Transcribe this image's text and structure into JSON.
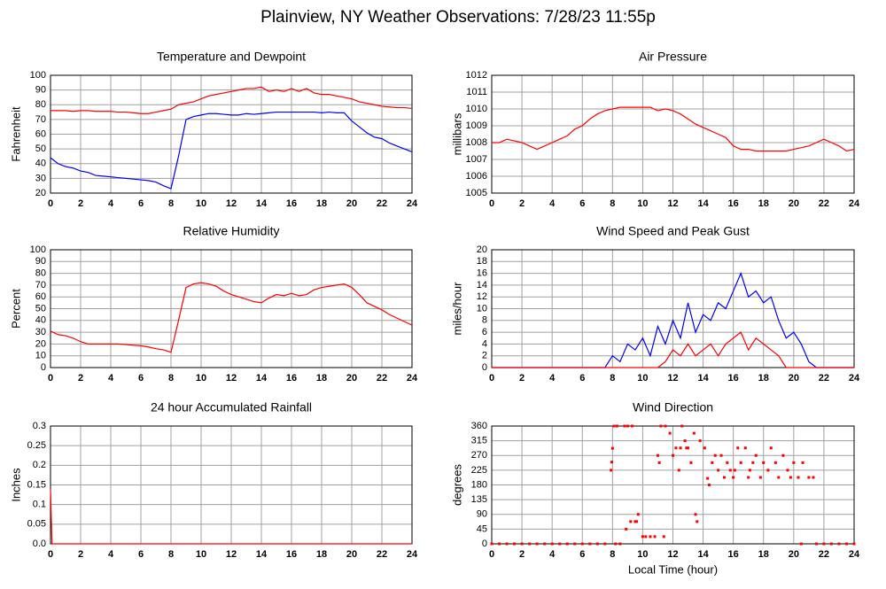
{
  "title": "Plainview, NY Weather Observations: 7/28/23 11:55p",
  "chart_data": [
    {
      "type": "line",
      "title": "Temperature and Dewpoint",
      "ylabel": "Fahrenheit",
      "grid": true,
      "xlim": [
        0,
        24
      ],
      "xticks": [
        0,
        2,
        4,
        6,
        8,
        10,
        12,
        14,
        16,
        18,
        20,
        22,
        24
      ],
      "ylim": [
        20,
        100
      ],
      "yticks": [
        20,
        30,
        40,
        50,
        60,
        70,
        80,
        90,
        100
      ],
      "x": [
        0,
        0.5,
        1,
        1.5,
        2,
        2.5,
        3,
        3.5,
        4,
        4.5,
        5,
        5.5,
        6,
        6.5,
        7,
        7.5,
        8,
        8.5,
        9,
        9.5,
        10,
        10.5,
        11,
        11.5,
        12,
        12.5,
        13,
        13.5,
        14,
        14.5,
        15,
        15.5,
        16,
        16.5,
        17,
        17.5,
        18,
        18.5,
        19,
        19.5,
        20,
        20.5,
        21,
        21.5,
        22,
        22.5,
        23,
        23.5,
        24
      ],
      "series": [
        {
          "color": "#ff0000",
          "values": [
            76,
            76,
            76,
            75.5,
            76,
            76,
            75.5,
            75.5,
            75.5,
            75,
            75,
            74.5,
            74,
            74,
            75,
            76,
            77,
            80,
            81,
            82,
            84,
            86,
            87,
            88,
            89,
            90,
            91,
            91,
            92,
            89,
            90,
            89,
            91,
            89,
            91,
            88,
            87,
            87,
            86,
            85,
            84,
            82,
            81,
            80,
            79,
            78.5,
            78,
            78,
            77.5
          ]
        },
        {
          "color": "#0000ff",
          "values": [
            44,
            40,
            38,
            37,
            35,
            34,
            32,
            31.5,
            31,
            30.5,
            30,
            29.5,
            29,
            28.5,
            27.5,
            25,
            23,
            45,
            70,
            72,
            73,
            74,
            74,
            73.5,
            73,
            73,
            74,
            73.5,
            74,
            74.5,
            75,
            75,
            75,
            75,
            75,
            75,
            74.5,
            75,
            74.5,
            74.5,
            69,
            65,
            61,
            58,
            57,
            54,
            52,
            50,
            48
          ]
        }
      ]
    },
    {
      "type": "line",
      "title": "Air Pressure",
      "ylabel": "millibars",
      "grid": true,
      "xlim": [
        0,
        24
      ],
      "xticks": [
        0,
        2,
        4,
        6,
        8,
        10,
        12,
        14,
        16,
        18,
        20,
        22,
        24
      ],
      "ylim": [
        1005,
        1012
      ],
      "yticks": [
        1005,
        1006,
        1007,
        1008,
        1009,
        1010,
        1011,
        1012
      ],
      "x": [
        0,
        0.5,
        1,
        1.5,
        2,
        2.5,
        3,
        3.5,
        4,
        4.5,
        5,
        5.5,
        6,
        6.5,
        7,
        7.5,
        8,
        8.5,
        9,
        9.5,
        10,
        10.5,
        11,
        11.5,
        12,
        12.5,
        13,
        13.5,
        14,
        14.5,
        15,
        15.5,
        16,
        16.5,
        17,
        17.5,
        18,
        18.5,
        19,
        19.5,
        20,
        20.5,
        21,
        21.5,
        22,
        22.5,
        23,
        23.5,
        24
      ],
      "series": [
        {
          "color": "#ff0000",
          "values": [
            1008,
            1008,
            1008.2,
            1008.1,
            1008,
            1007.8,
            1007.6,
            1007.8,
            1008,
            1008.2,
            1008.4,
            1008.8,
            1009,
            1009.4,
            1009.7,
            1009.9,
            1010,
            1010.1,
            1010.1,
            1010.1,
            1010.1,
            1010.1,
            1009.9,
            1010,
            1009.9,
            1009.7,
            1009.4,
            1009.1,
            1008.9,
            1008.7,
            1008.5,
            1008.3,
            1007.8,
            1007.6,
            1007.6,
            1007.5,
            1007.5,
            1007.5,
            1007.5,
            1007.5,
            1007.6,
            1007.7,
            1007.8,
            1008,
            1008.2,
            1008,
            1007.8,
            1007.5,
            1007.6
          ]
        }
      ]
    },
    {
      "type": "line",
      "title": "Relative Humidity",
      "ylabel": "Percent",
      "grid": true,
      "xlim": [
        0,
        24
      ],
      "xticks": [
        0,
        2,
        4,
        6,
        8,
        10,
        12,
        14,
        16,
        18,
        20,
        22,
        24
      ],
      "ylim": [
        0,
        100
      ],
      "yticks": [
        0,
        10,
        20,
        30,
        40,
        50,
        60,
        70,
        80,
        90,
        100
      ],
      "x": [
        0,
        0.5,
        1,
        1.5,
        2,
        2.5,
        3,
        3.5,
        4,
        4.5,
        5,
        5.5,
        6,
        6.5,
        7,
        7.5,
        8,
        8.5,
        9,
        9.5,
        10,
        10.5,
        11,
        11.5,
        12,
        12.5,
        13,
        13.5,
        14,
        14.5,
        15,
        15.5,
        16,
        16.5,
        17,
        17.5,
        18,
        18.5,
        19,
        19.5,
        20,
        20.5,
        21,
        21.5,
        22,
        22.5,
        23,
        23.5,
        24
      ],
      "series": [
        {
          "color": "#ff0000",
          "values": [
            31,
            28,
            27,
            25,
            22,
            20,
            20,
            20,
            20,
            20,
            19.5,
            19,
            18.5,
            17.5,
            16,
            15,
            13,
            40,
            68,
            71,
            72,
            71,
            69,
            65,
            62,
            60,
            58,
            56,
            55,
            59,
            62,
            61,
            63,
            61,
            62,
            66,
            68,
            69,
            70,
            71,
            68,
            62,
            55,
            52,
            49,
            45,
            42,
            39,
            36
          ]
        }
      ]
    },
    {
      "type": "line",
      "title": "Wind Speed and Peak Gust",
      "ylabel": "miles/hour",
      "grid": true,
      "xlim": [
        0,
        24
      ],
      "xticks": [
        0,
        2,
        4,
        6,
        8,
        10,
        12,
        14,
        16,
        18,
        20,
        22,
        24
      ],
      "ylim": [
        0,
        20
      ],
      "yticks": [
        0,
        2,
        4,
        6,
        8,
        10,
        12,
        14,
        16,
        18,
        20
      ],
      "x": [
        0,
        0.5,
        1,
        1.5,
        2,
        2.5,
        3,
        3.5,
        4,
        4.5,
        5,
        5.5,
        6,
        6.5,
        7,
        7.5,
        8,
        8.5,
        9,
        9.5,
        10,
        10.5,
        11,
        11.5,
        12,
        12.5,
        13,
        13.5,
        14,
        14.5,
        15,
        15.5,
        16,
        16.5,
        17,
        17.5,
        18,
        18.5,
        19,
        19.5,
        20,
        20.5,
        21,
        21.5,
        22,
        22.5,
        23,
        23.5,
        24
      ],
      "series": [
        {
          "color": "#0000ff",
          "values": [
            0,
            0,
            0,
            0,
            0,
            0,
            0,
            0,
            0,
            0,
            0,
            0,
            0,
            0,
            0,
            0,
            2,
            1,
            4,
            3,
            5,
            2,
            7,
            4,
            8,
            5,
            11,
            6,
            9,
            8,
            11,
            10,
            13,
            16,
            12,
            13,
            11,
            12,
            8,
            5,
            6,
            4,
            1,
            0,
            0,
            0,
            0,
            0,
            0
          ]
        },
        {
          "color": "#ff0000",
          "values": [
            0,
            0,
            0,
            0,
            0,
            0,
            0,
            0,
            0,
            0,
            0,
            0,
            0,
            0,
            0,
            0,
            0,
            0,
            0,
            0,
            0,
            0,
            0,
            1,
            3,
            2,
            4,
            2,
            3,
            4,
            2,
            4,
            5,
            6,
            3,
            5,
            4,
            3,
            2,
            0,
            0,
            0,
            0,
            0,
            0,
            0,
            0,
            0,
            0
          ]
        }
      ]
    },
    {
      "type": "line",
      "title": "24 hour Accumulated Rainfall",
      "ylabel": "Inches",
      "grid": true,
      "xlim": [
        0,
        24
      ],
      "xticks": [
        0,
        2,
        4,
        6,
        8,
        10,
        12,
        14,
        16,
        18,
        20,
        22,
        24
      ],
      "ylim": [
        0,
        0.3
      ],
      "yticks": [
        {
          "value": 0,
          "label": "0.0"
        },
        0.05,
        0.1,
        0.15,
        0.2,
        0.25,
        0.3
      ],
      "x": [
        0,
        0.1,
        24
      ],
      "series": [
        {
          "color": "#ff0000",
          "values": [
            0.14,
            0,
            0
          ]
        }
      ]
    },
    {
      "type": "scatter",
      "title": "Wind Direction",
      "ylabel": "degrees",
      "xlabel": "Local Time (hour)",
      "grid": true,
      "xlim": [
        0,
        24
      ],
      "xticks": [
        0,
        2,
        4,
        6,
        8,
        10,
        12,
        14,
        16,
        18,
        20,
        22,
        24
      ],
      "ylim": [
        0,
        360
      ],
      "yticks": [
        0,
        45,
        90,
        135,
        180,
        225,
        270,
        315,
        360
      ],
      "x": [
        0,
        0.5,
        1,
        1.5,
        2,
        2.5,
        3,
        3.5,
        4,
        4.5,
        5,
        5.5,
        6,
        6.5,
        7,
        7.5,
        7.9,
        7.95,
        8,
        8.1,
        8.2,
        8.3,
        8.5,
        8.8,
        8.9,
        9,
        9.2,
        9.3,
        9.5,
        9.6,
        9.7,
        10,
        10.2,
        10.5,
        10.8,
        11,
        11.1,
        11.2,
        11.4,
        11.5,
        11.8,
        12,
        12.2,
        12.4,
        12.5,
        12.6,
        12.8,
        12.9,
        13,
        13.2,
        13.4,
        13.5,
        13.6,
        13.8,
        14.1,
        14.3,
        14.4,
        14.6,
        14.8,
        15,
        15.2,
        15.4,
        15.6,
        15.8,
        16,
        16.1,
        16.3,
        16.5,
        16.8,
        17,
        17.1,
        17.3,
        17.5,
        17.8,
        18,
        18.3,
        18.5,
        18.8,
        19,
        19.3,
        19.6,
        19.8,
        20,
        20.3,
        20.5,
        20.6,
        21,
        21.3,
        21.5,
        22,
        22.5,
        23,
        23.5,
        24
      ],
      "series": [
        {
          "color": "#ff0000",
          "values": [
            0,
            0,
            0,
            0,
            0,
            0,
            0,
            0,
            0,
            0,
            0,
            0,
            0,
            0,
            0,
            0,
            225,
            250,
            292,
            360,
            0,
            360,
            0,
            360,
            45,
            360,
            68,
            360,
            68,
            68,
            90,
            22,
            22,
            22,
            22,
            270,
            248,
            360,
            22,
            360,
            338,
            270,
            293,
            225,
            293,
            360,
            315,
            293,
            293,
            248,
            338,
            90,
            68,
            315,
            293,
            200,
            180,
            248,
            270,
            225,
            270,
            203,
            248,
            225,
            203,
            225,
            293,
            248,
            293,
            203,
            225,
            248,
            270,
            203,
            248,
            225,
            293,
            248,
            203,
            270,
            225,
            203,
            248,
            203,
            0,
            248,
            203,
            203,
            0,
            0,
            0,
            0,
            0,
            0
          ]
        }
      ]
    }
  ]
}
